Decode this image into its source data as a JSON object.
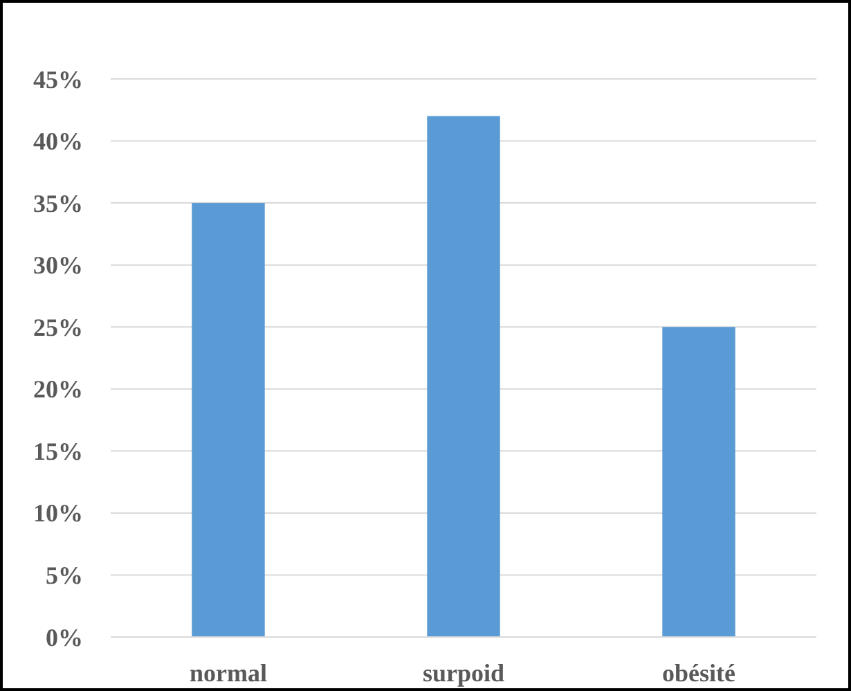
{
  "chart_data": {
    "type": "bar",
    "categories": [
      "normal",
      "surpoid",
      "obésité"
    ],
    "values": [
      35,
      42,
      25
    ],
    "color": "#5b9bd5",
    "ylim": [
      0,
      45
    ],
    "yticks": [
      {
        "value": 0,
        "label": "0%"
      },
      {
        "value": 5,
        "label": "5%"
      },
      {
        "value": 10,
        "label": "10%"
      },
      {
        "value": 15,
        "label": "15%"
      },
      {
        "value": 20,
        "label": "20%"
      },
      {
        "value": 25,
        "label": "25%"
      },
      {
        "value": 30,
        "label": "30%"
      },
      {
        "value": 35,
        "label": "35%"
      },
      {
        "value": 40,
        "label": "40%"
      },
      {
        "value": 45,
        "label": "45%"
      }
    ],
    "grid": "y"
  }
}
